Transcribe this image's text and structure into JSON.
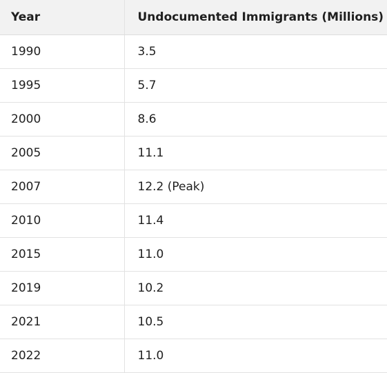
{
  "table": {
    "headers": [
      "Year",
      "Undocumented Immigrants (Millions)"
    ],
    "rows": [
      [
        "1990",
        "3.5"
      ],
      [
        "1995",
        "5.7"
      ],
      [
        "2000",
        "8.6"
      ],
      [
        "2005",
        "11.1"
      ],
      [
        "2007",
        "12.2 (Peak)"
      ],
      [
        "2010",
        "11.4"
      ],
      [
        "2015",
        "11.0"
      ],
      [
        "2019",
        "10.2"
      ],
      [
        "2021",
        "10.5"
      ],
      [
        "2022",
        "11.0"
      ]
    ]
  }
}
